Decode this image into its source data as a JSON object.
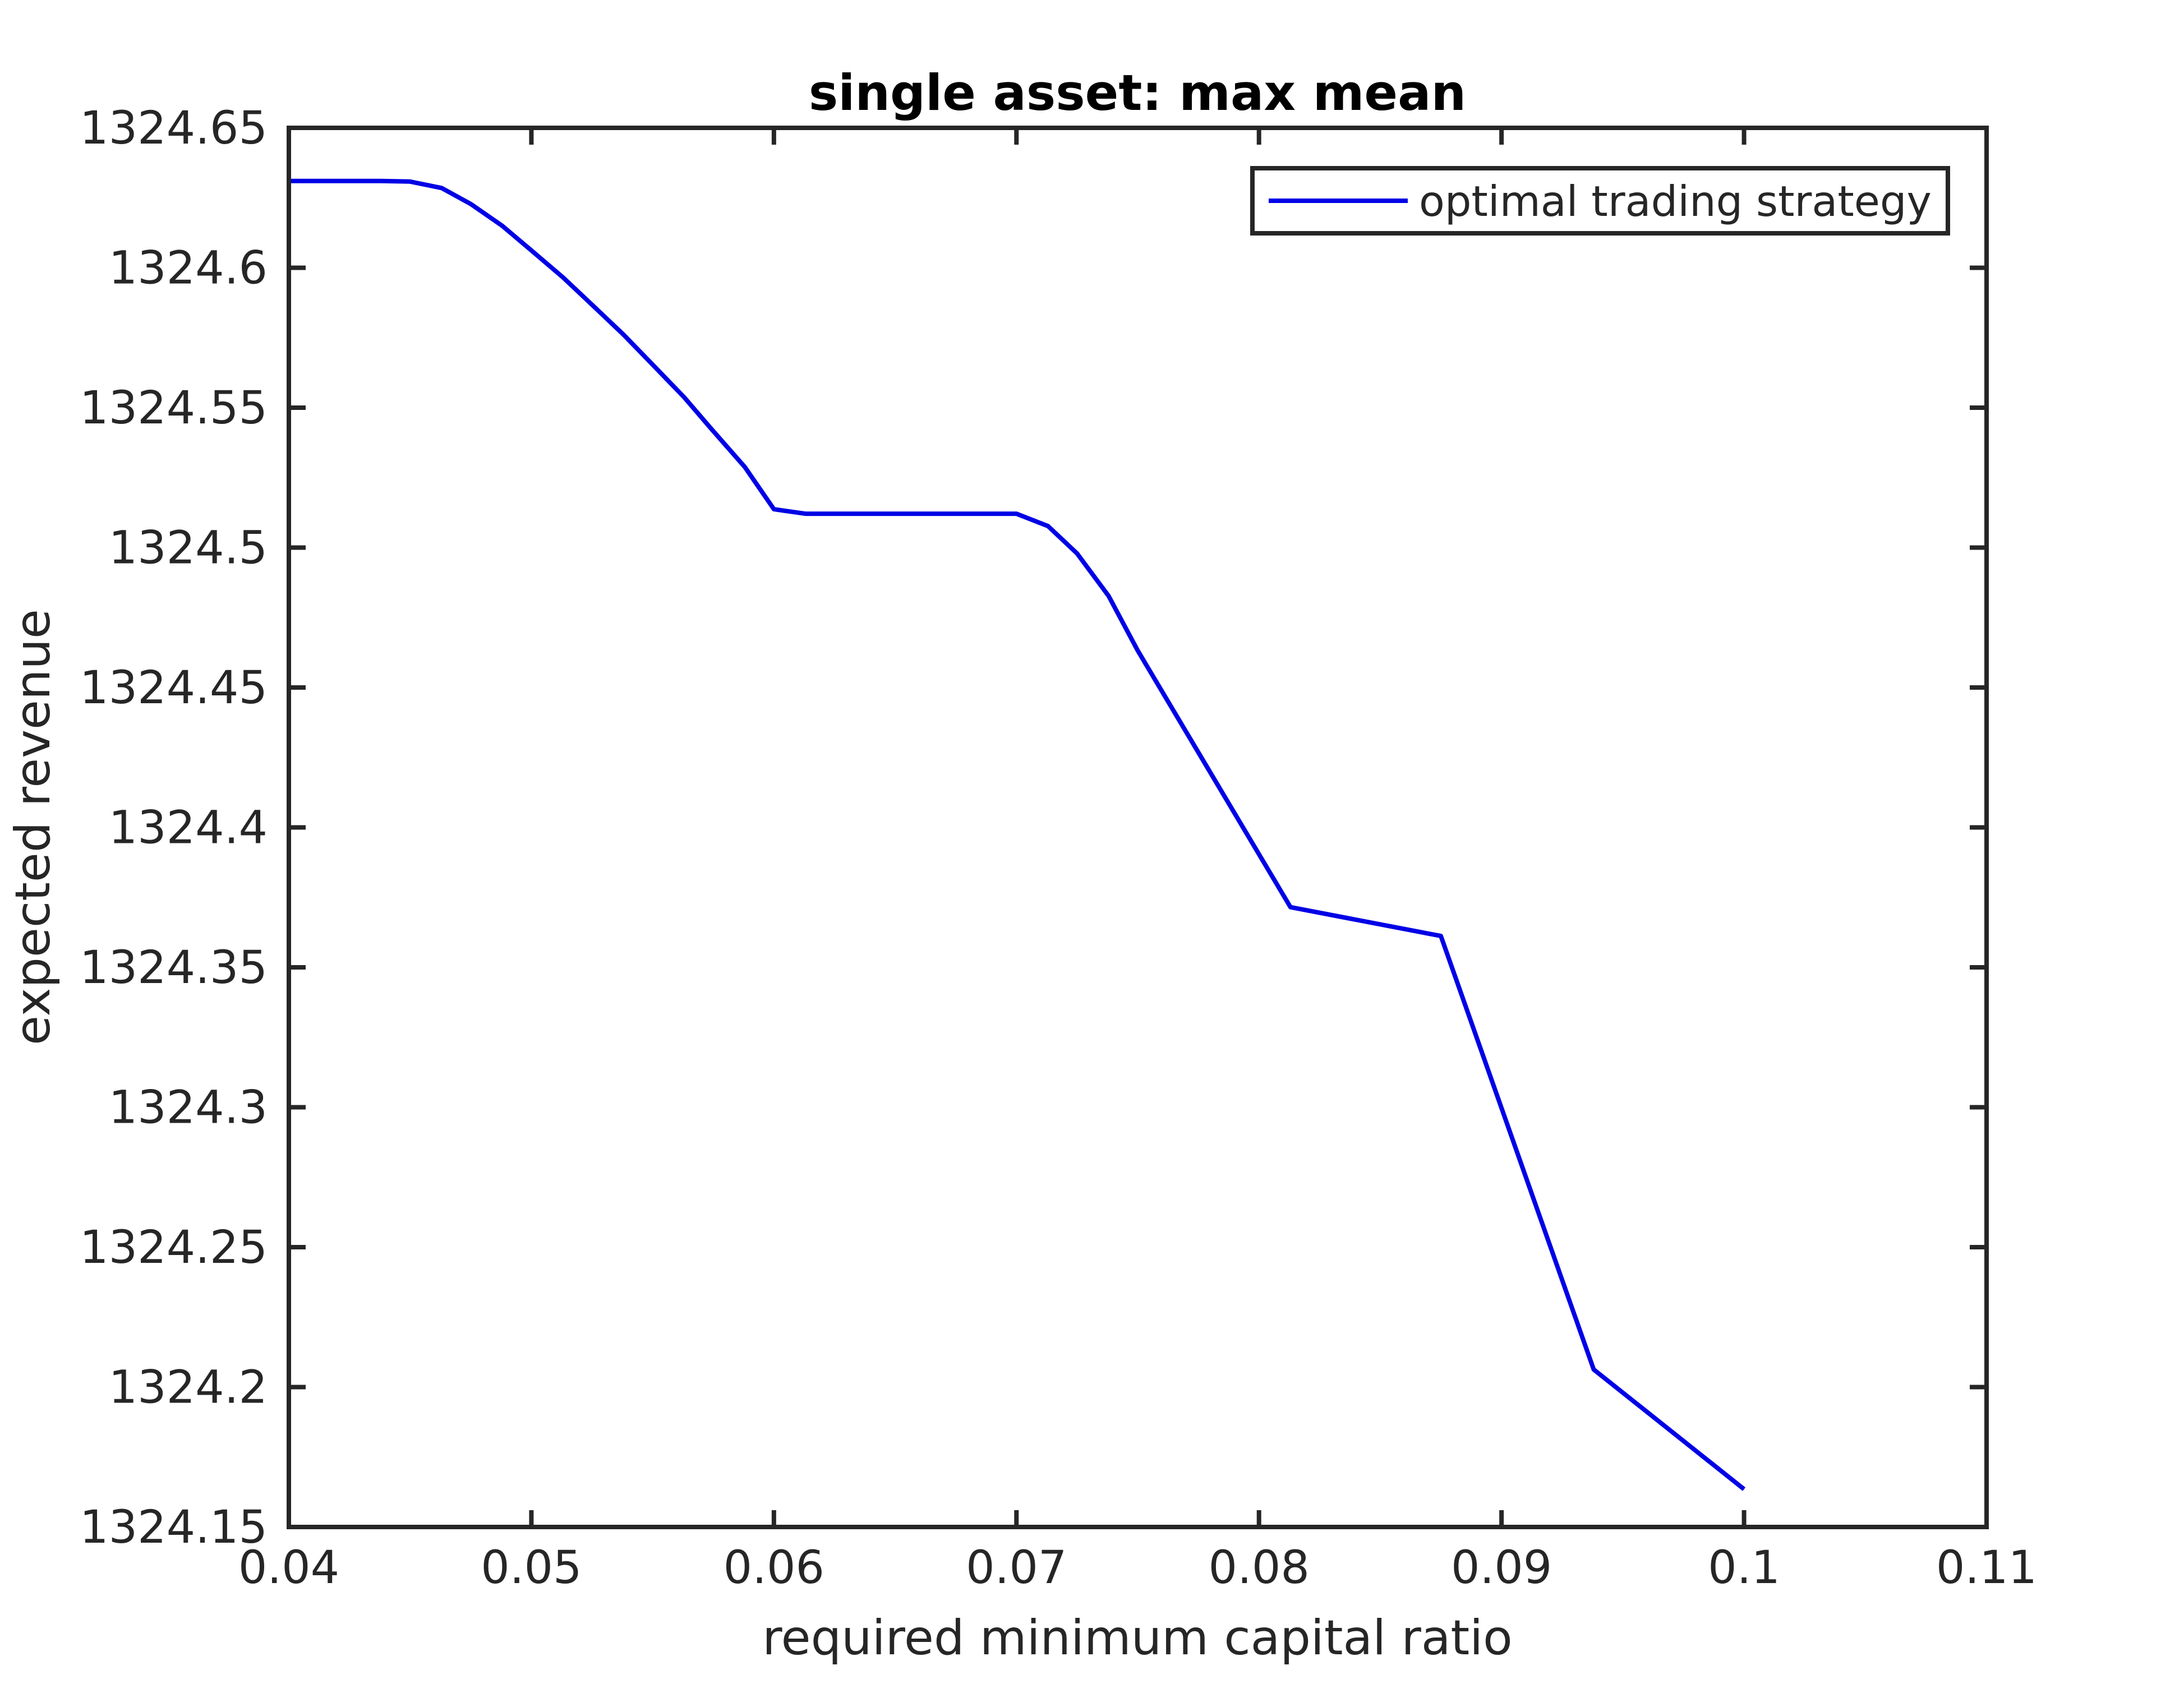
{
  "chart_data": {
    "type": "line",
    "title": "single asset: max mean",
    "xlabel": "required minimum capital ratio",
    "ylabel": "expected revenue",
    "xlim": [
      0.04,
      0.11
    ],
    "ylim": [
      1324.15,
      1324.65
    ],
    "xticks": [
      0.04,
      0.05,
      0.06,
      0.07,
      0.08,
      0.09,
      0.1,
      0.11
    ],
    "xtick_labels": [
      "0.04",
      "0.05",
      "0.06",
      "0.07",
      "0.08",
      "0.09",
      "0.1",
      "0.11"
    ],
    "yticks": [
      1324.15,
      1324.2,
      1324.25,
      1324.3,
      1324.35,
      1324.4,
      1324.45,
      1324.5,
      1324.55,
      1324.6,
      1324.65
    ],
    "ytick_labels": [
      "1324.15",
      "1324.2",
      "1324.25",
      "1324.3",
      "1324.35",
      "1324.4",
      "1324.45",
      "1324.5",
      "1324.55",
      "1324.6",
      "1324.65"
    ],
    "grid": false,
    "legend": {
      "location": "top-right"
    },
    "series": [
      {
        "name": "optimal trading strategy",
        "color": "#0000e6",
        "x": [
          0.04,
          0.0413,
          0.0425,
          0.0438,
          0.045,
          0.0463,
          0.0475,
          0.0488,
          0.05,
          0.0513,
          0.0525,
          0.0538,
          0.055,
          0.0563,
          0.0575,
          0.0588,
          0.06,
          0.0613,
          0.07,
          0.0713,
          0.0725,
          0.0738,
          0.075,
          0.0813,
          0.0875,
          0.0938,
          0.1
        ],
        "y": [
          1324.631,
          1324.631,
          1324.631,
          1324.631,
          1324.6308,
          1324.6285,
          1324.6228,
          1324.615,
          1324.6062,
          1324.5966,
          1324.5868,
          1324.5761,
          1324.5654,
          1324.5537,
          1324.5416,
          1324.5288,
          1324.5137,
          1324.5121,
          1324.5121,
          1324.5077,
          1324.4979,
          1324.4827,
          1324.4632,
          1324.3715,
          1324.3612,
          1324.2063,
          1324.1635
        ]
      }
    ]
  }
}
